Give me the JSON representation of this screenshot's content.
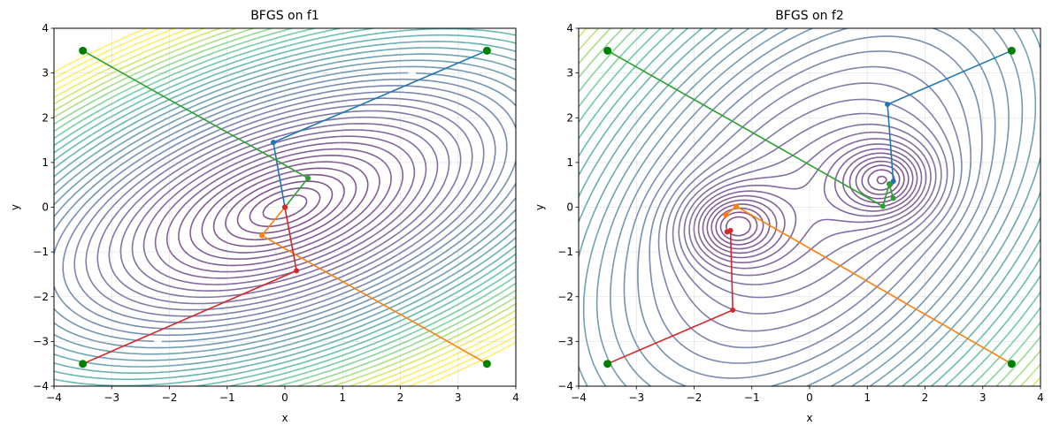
{
  "chart_data": [
    {
      "type": "line",
      "title": "BFGS on f1",
      "xlabel": "x",
      "ylabel": "y",
      "xlim": [
        -4,
        4
      ],
      "ylim": [
        -4,
        4
      ],
      "xticks": [
        "−4",
        "−3",
        "−2",
        "−1",
        "0",
        "1",
        "2",
        "3",
        "4"
      ],
      "yticks": [
        "−4",
        "−3",
        "−2",
        "−1",
        "0",
        "1",
        "2",
        "3",
        "4"
      ],
      "grid": true,
      "background": "contour",
      "start_marker_color": "#008000",
      "series": [
        {
          "color": "#1f77b4",
          "x": [
            3.5,
            -0.2,
            0.0
          ],
          "y": [
            3.5,
            1.45,
            0.0
          ]
        },
        {
          "color": "#ff7f0e",
          "x": [
            3.5,
            -0.4,
            0.0
          ],
          "y": [
            -3.5,
            -0.63,
            0.0
          ]
        },
        {
          "color": "#2ca02c",
          "x": [
            -3.5,
            0.4,
            0.0
          ],
          "y": [
            3.5,
            0.65,
            0.0
          ]
        },
        {
          "color": "#d62728",
          "x": [
            -3.5,
            0.2,
            0.0
          ],
          "y": [
            -3.5,
            -1.42,
            0.0
          ]
        }
      ]
    },
    {
      "type": "line",
      "title": "BFGS on f2",
      "xlabel": "x",
      "ylabel": "y",
      "xlim": [
        -4,
        4
      ],
      "ylim": [
        -4,
        4
      ],
      "xticks": [
        "−4",
        "−3",
        "−2",
        "−1",
        "0",
        "1",
        "2",
        "3",
        "4"
      ],
      "yticks": [
        "−4",
        "−3",
        "−2",
        "−1",
        "0",
        "1",
        "2",
        "3",
        "4"
      ],
      "grid": true,
      "background": "contour",
      "start_marker_color": "#008000",
      "series": [
        {
          "color": "#1f77b4",
          "x": [
            3.5,
            1.35,
            1.45
          ],
          "y": [
            3.5,
            2.3,
            0.58
          ]
        },
        {
          "color": "#ff7f0e",
          "x": [
            3.5,
            -1.27,
            -1.45
          ],
          "y": [
            -3.5,
            0.02,
            -0.17
          ]
        },
        {
          "color": "#2ca02c",
          "x": [
            -3.5,
            1.27,
            1.38,
            1.45
          ],
          "y": [
            3.5,
            0.02,
            0.52,
            0.2
          ]
        },
        {
          "color": "#d62728",
          "x": [
            -3.5,
            -1.33,
            -1.37,
            -1.43
          ],
          "y": [
            -3.5,
            -2.3,
            -0.52,
            -0.55
          ]
        }
      ]
    }
  ]
}
